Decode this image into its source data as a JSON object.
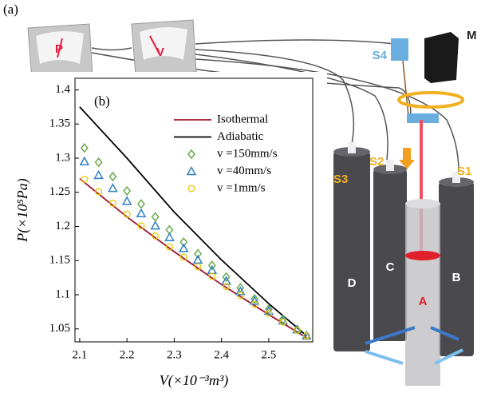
{
  "panel_a": "(a)",
  "diagram": {
    "gauge_p": "P",
    "gauge_v": "V",
    "sensor_s4": "S4",
    "motor": "M",
    "sensor_s3": "S3",
    "sensor_s2": "S2",
    "sensor_s1": "S1",
    "cyl_d": "D",
    "cyl_c": "C",
    "cyl_a": "A",
    "cyl_b": "B"
  },
  "chart_data": {
    "type": "line",
    "panel": "(b)",
    "xlabel": "V(×10⁻³m³)",
    "ylabel": "P(×10⁵Pa)",
    "xlim": [
      2.09,
      2.593
    ],
    "ylim": [
      1.031,
      1.417
    ],
    "xticks": [
      2.1,
      2.2,
      2.3,
      2.4,
      2.5
    ],
    "yticks": [
      1.05,
      1.1,
      1.15,
      1.2,
      1.25,
      1.3,
      1.35,
      1.4
    ],
    "series": [
      {
        "name": "Isothermal",
        "color": "#a0142a",
        "style": "line",
        "x": [
          2.1,
          2.2,
          2.3,
          2.4,
          2.5,
          2.58
        ],
        "values": [
          1.27,
          1.214,
          1.163,
          1.115,
          1.071,
          1.037
        ]
      },
      {
        "name": "Adiabatic",
        "color": "#000000",
        "style": "line",
        "x": [
          2.1,
          2.2,
          2.3,
          2.4,
          2.5,
          2.58
        ],
        "values": [
          1.375,
          1.3,
          1.221,
          1.151,
          1.087,
          1.04
        ]
      },
      {
        "name": "v =150mm/s",
        "color": "#6aa84f",
        "style": "diamond",
        "x": [
          2.11,
          2.14,
          2.17,
          2.2,
          2.23,
          2.26,
          2.29,
          2.32,
          2.35,
          2.38,
          2.41,
          2.44,
          2.47,
          2.5,
          2.53,
          2.56,
          2.58
        ],
        "values": [
          1.315,
          1.294,
          1.273,
          1.252,
          1.233,
          1.214,
          1.195,
          1.177,
          1.16,
          1.143,
          1.126,
          1.11,
          1.094,
          1.079,
          1.064,
          1.049,
          1.04
        ]
      },
      {
        "name": "v =40mm/s",
        "color": "#2f7fc8",
        "style": "triangle",
        "x": [
          2.11,
          2.14,
          2.17,
          2.2,
          2.23,
          2.26,
          2.29,
          2.32,
          2.35,
          2.38,
          2.41,
          2.44,
          2.47,
          2.5,
          2.53,
          2.56,
          2.58
        ],
        "values": [
          1.295,
          1.275,
          1.256,
          1.237,
          1.219,
          1.201,
          1.184,
          1.168,
          1.151,
          1.136,
          1.12,
          1.105,
          1.091,
          1.076,
          1.062,
          1.049,
          1.04
        ]
      },
      {
        "name": "v =1mm/s",
        "color": "#e8c800",
        "style": "circle",
        "x": [
          2.11,
          2.14,
          2.17,
          2.2,
          2.23,
          2.26,
          2.29,
          2.32,
          2.35,
          2.38,
          2.41,
          2.44,
          2.47,
          2.5,
          2.53,
          2.56,
          2.58
        ],
        "values": [
          1.269,
          1.251,
          1.234,
          1.218,
          1.201,
          1.186,
          1.17,
          1.155,
          1.141,
          1.127,
          1.112,
          1.099,
          1.086,
          1.073,
          1.06,
          1.048,
          1.04
        ]
      }
    ]
  }
}
